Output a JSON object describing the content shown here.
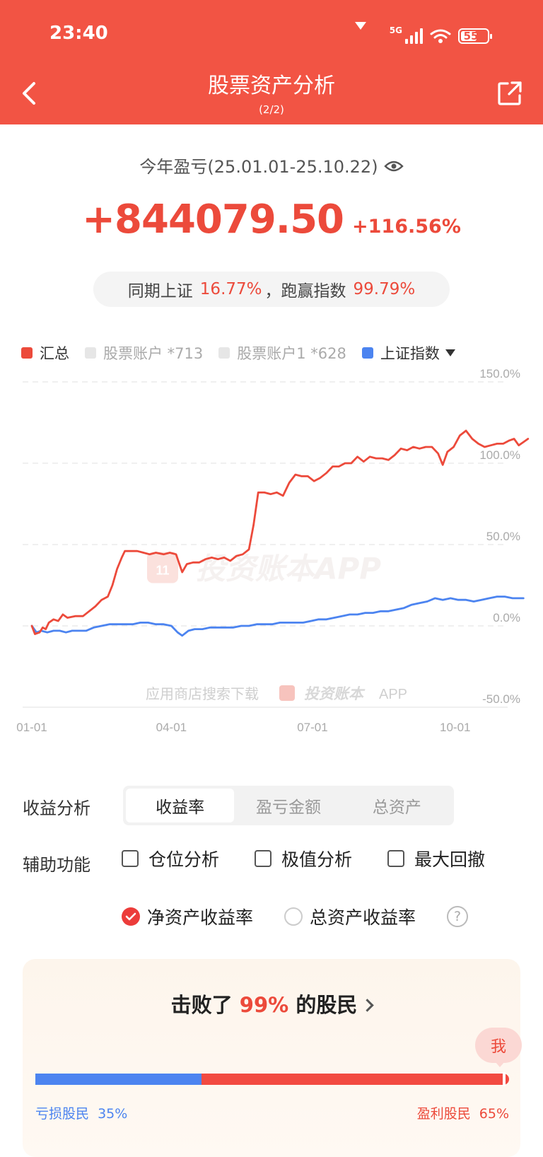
{
  "status": {
    "time": "23:40",
    "network": "5G",
    "battery": "55"
  },
  "header": {
    "title": "股票资产分析",
    "subtitle": "(2/2)"
  },
  "summary": {
    "period_label": "今年盈亏(25.01.01-25.10.22)",
    "profit_value": "+844079.50",
    "profit_pct": "+116.56%",
    "compare_prefix": "同期上证",
    "index_pct": "16.77%",
    "compare_sep": "，跑赢指数",
    "outperform_pct": "99.79%"
  },
  "legend": [
    {
      "label": "汇总",
      "color": "#ec4a3b",
      "text_color": "#333333"
    },
    {
      "label": "股票账户 *713",
      "color": "#e6e6e6",
      "text_color": "#aaaaaa"
    },
    {
      "label": "股票账户1 *628",
      "color": "#e6e6e6",
      "text_color": "#aaaaaa"
    },
    {
      "label": "上证指数",
      "color": "#4c84f0",
      "text_color": "#333333"
    }
  ],
  "chart_data": {
    "type": "line",
    "ylim": [
      -50,
      150
    ],
    "y_ticks": [
      "150.0%",
      "100.0%",
      "50.0%",
      "0.0%",
      "-50.0%"
    ],
    "y_tick_values": [
      150,
      100,
      50,
      0,
      -50
    ],
    "x_ticks": [
      "01-01",
      "04-01",
      "07-01",
      "10-01"
    ],
    "x_tick_days": [
      0,
      90,
      181,
      273
    ],
    "x_range_days": [
      0,
      295
    ],
    "watermark": "投资账本APP",
    "watermark_icon": "11",
    "footer_watermark_prefix": "应用商店搜索下载",
    "footer_watermark_brand": "投资账本",
    "footer_watermark_suffix": "APP",
    "series": [
      {
        "name": "汇总",
        "color": "#ec4a3b",
        "points": [
          [
            0,
            0
          ],
          [
            2,
            -5
          ],
          [
            5,
            -4
          ],
          [
            7,
            -1
          ],
          [
            9,
            -2
          ],
          [
            11,
            2
          ],
          [
            14,
            4
          ],
          [
            17,
            3
          ],
          [
            20,
            7
          ],
          [
            23,
            5
          ],
          [
            28,
            6
          ],
          [
            33,
            6
          ],
          [
            37,
            9
          ],
          [
            41,
            12
          ],
          [
            45,
            16
          ],
          [
            49,
            18
          ],
          [
            52,
            25
          ],
          [
            55,
            35
          ],
          [
            58,
            42
          ],
          [
            60,
            46
          ],
          [
            64,
            46
          ],
          [
            68,
            46
          ],
          [
            72,
            45
          ],
          [
            76,
            44
          ],
          [
            80,
            45
          ],
          [
            85,
            44
          ],
          [
            89,
            45
          ],
          [
            93,
            44
          ],
          [
            97,
            33
          ],
          [
            100,
            38
          ],
          [
            104,
            39
          ],
          [
            108,
            39
          ],
          [
            112,
            41
          ],
          [
            116,
            42
          ],
          [
            120,
            41
          ],
          [
            124,
            42
          ],
          [
            128,
            40
          ],
          [
            132,
            43
          ],
          [
            136,
            44
          ],
          [
            140,
            47
          ],
          [
            143,
            62
          ],
          [
            146,
            82
          ],
          [
            150,
            82
          ],
          [
            154,
            81
          ],
          [
            158,
            82
          ],
          [
            162,
            80
          ],
          [
            166,
            88
          ],
          [
            170,
            93
          ],
          [
            174,
            92
          ],
          [
            178,
            92
          ],
          [
            182,
            89
          ],
          [
            186,
            91
          ],
          [
            190,
            94
          ],
          [
            194,
            98
          ],
          [
            198,
            98
          ],
          [
            202,
            100
          ],
          [
            206,
            100
          ],
          [
            210,
            104
          ],
          [
            214,
            101
          ],
          [
            218,
            104
          ],
          [
            222,
            103
          ],
          [
            226,
            103
          ],
          [
            230,
            102
          ],
          [
            234,
            105
          ],
          [
            238,
            109
          ],
          [
            242,
            108
          ],
          [
            246,
            110
          ],
          [
            250,
            109
          ],
          [
            254,
            110
          ],
          [
            258,
            110
          ],
          [
            262,
            106
          ],
          [
            265,
            99
          ],
          [
            268,
            107
          ],
          [
            272,
            110
          ],
          [
            276,
            117
          ],
          [
            280,
            120
          ],
          [
            284,
            115
          ],
          [
            288,
            112
          ],
          [
            292,
            110
          ],
          [
            296,
            111
          ],
          [
            300,
            112
          ],
          [
            304,
            112
          ],
          [
            308,
            114
          ],
          [
            311,
            115
          ],
          [
            314,
            111
          ],
          [
            317,
            113
          ],
          [
            320,
            115
          ]
        ]
      },
      {
        "name": "上证指数",
        "color": "#4c84f0",
        "points": [
          [
            0,
            0
          ],
          [
            3,
            -4
          ],
          [
            6,
            -3
          ],
          [
            10,
            -4
          ],
          [
            14,
            -3
          ],
          [
            18,
            -3
          ],
          [
            22,
            -4
          ],
          [
            26,
            -3
          ],
          [
            30,
            -3
          ],
          [
            35,
            -3
          ],
          [
            40,
            -1
          ],
          [
            45,
            0
          ],
          [
            50,
            1
          ],
          [
            55,
            1
          ],
          [
            60,
            1
          ],
          [
            65,
            1
          ],
          [
            70,
            2
          ],
          [
            75,
            2
          ],
          [
            80,
            1
          ],
          [
            85,
            1
          ],
          [
            90,
            0
          ],
          [
            94,
            -4
          ],
          [
            97,
            -6
          ],
          [
            101,
            -3
          ],
          [
            105,
            -2
          ],
          [
            110,
            -2
          ],
          [
            115,
            -1
          ],
          [
            120,
            -1
          ],
          [
            125,
            -1
          ],
          [
            130,
            -1
          ],
          [
            135,
            0
          ],
          [
            140,
            0
          ],
          [
            145,
            1
          ],
          [
            150,
            1
          ],
          [
            155,
            1
          ],
          [
            160,
            2
          ],
          [
            165,
            2
          ],
          [
            170,
            2
          ],
          [
            175,
            2
          ],
          [
            180,
            3
          ],
          [
            185,
            4
          ],
          [
            190,
            4
          ],
          [
            195,
            5
          ],
          [
            200,
            6
          ],
          [
            205,
            7
          ],
          [
            210,
            7
          ],
          [
            215,
            8
          ],
          [
            220,
            8
          ],
          [
            225,
            9
          ],
          [
            230,
            9
          ],
          [
            235,
            10
          ],
          [
            240,
            11
          ],
          [
            245,
            13
          ],
          [
            250,
            14
          ],
          [
            255,
            15
          ],
          [
            260,
            17
          ],
          [
            265,
            16
          ],
          [
            270,
            17
          ],
          [
            275,
            16
          ],
          [
            280,
            16
          ],
          [
            285,
            15
          ],
          [
            290,
            16
          ],
          [
            295,
            17
          ],
          [
            300,
            18
          ],
          [
            305,
            18
          ],
          [
            310,
            17
          ],
          [
            314,
            17
          ],
          [
            317,
            17
          ]
        ]
      }
    ]
  },
  "analysis": {
    "label": "收益分析",
    "tabs": [
      "收益率",
      "盈亏金额",
      "总资产"
    ],
    "active_tab": 0
  },
  "aux": {
    "label": "辅助功能",
    "checks": [
      "仓位分析",
      "极值分析",
      "最大回撤"
    ],
    "radios": [
      "净资产收益率",
      "总资产收益率"
    ],
    "selected_radio": 0,
    "help": "?"
  },
  "rank": {
    "title_prefix": "击败了",
    "beat_pct": "99%",
    "title_suffix": "的股民",
    "me": "我",
    "loss_label": "亏损股民",
    "loss_pct": "35%",
    "gain_label": "盈利股民",
    "gain_pct": "65%",
    "loss_share": 0.35,
    "me_position": 0.99,
    "loss_color": "#4c84f0",
    "gain_color": "#f24a41"
  }
}
